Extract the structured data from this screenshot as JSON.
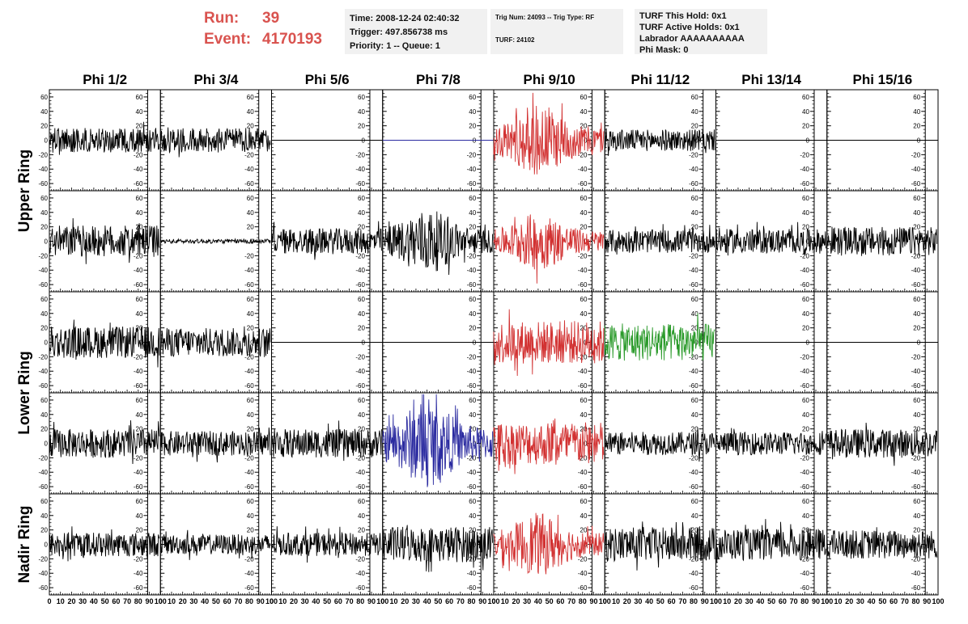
{
  "header": {
    "run_label": "Run:",
    "run_value": "39",
    "event_label": "Event:",
    "event_value": "4170193",
    "time": "Time: 2008-12-24 02:40:32",
    "trigger": "Trigger: 497.856738 ms",
    "priority": "Priority: 1 -- Queue: 1",
    "trig_num": "Trig Num: 24093 -- Trig Type: RF",
    "turf": "TURF: 24102",
    "turf_this_hold": "TURF This Hold: 0x1",
    "turf_active_holds": "TURF Active Holds: 0x1",
    "labrador": "Labrador AAAAAAAAAA",
    "phi_mask": "Phi Mask: 0"
  },
  "colors": {
    "run_text": "#d9534f",
    "box_bg": "#f1f1f1",
    "black": "#000000",
    "red": "#d23232",
    "blue": "#2b2ba0",
    "green": "#2a9a2a"
  },
  "chart_data": {
    "type": "line",
    "columns": [
      "Phi 1/2",
      "Phi 3/4",
      "Phi 5/6",
      "Phi 7/8",
      "Phi 9/10",
      "Phi 11/12",
      "Phi 13/14",
      "Phi 15/16"
    ],
    "ring_labels": [
      "Upper Ring",
      "Lower Ring",
      "Nadir Ring"
    ],
    "xlim": [
      0,
      100
    ],
    "ylim": [
      -70,
      70
    ],
    "x_ticks": [
      0,
      10,
      20,
      30,
      40,
      50,
      60,
      70,
      80,
      90,
      100
    ],
    "x_tick_labels": [
      "0",
      "10",
      "20",
      "30",
      "40",
      "50",
      "60",
      "70",
      "80",
      "90",
      "100"
    ],
    "y_ticks": [
      -60,
      -40,
      -20,
      0,
      20,
      40,
      60
    ],
    "y_tick_labels": [
      "-60",
      "-40",
      "-20",
      "0",
      "20",
      "40",
      "60"
    ],
    "grid": false,
    "rows": [
      [
        {
          "color": "black",
          "amp": 17,
          "active": true
        },
        {
          "color": "black",
          "amp": 17,
          "active": true
        },
        {
          "color": "black",
          "amp": 0,
          "active": false
        },
        {
          "color": "blue",
          "amp": 0,
          "active": false
        },
        {
          "color": "red",
          "amp": 40,
          "active": true
        },
        {
          "color": "black",
          "amp": 15,
          "active": true
        },
        {
          "color": "black",
          "amp": 0,
          "active": false
        },
        {
          "color": "black",
          "amp": 0,
          "active": false
        }
      ],
      [
        {
          "color": "black",
          "amp": 22,
          "active": true
        },
        {
          "color": "black",
          "amp": 3,
          "active": true
        },
        {
          "color": "black",
          "amp": 18,
          "active": true
        },
        {
          "color": "black",
          "amp": 36,
          "active": true
        },
        {
          "color": "red",
          "amp": 32,
          "active": true
        },
        {
          "color": "black",
          "amp": 16,
          "active": true
        },
        {
          "color": "black",
          "amp": 17,
          "active": true
        },
        {
          "color": "black",
          "amp": 20,
          "active": true
        }
      ],
      [
        {
          "color": "black",
          "amp": 22,
          "active": true
        },
        {
          "color": "black",
          "amp": 20,
          "active": true
        },
        {
          "color": "black",
          "amp": 0,
          "active": false
        },
        {
          "color": "black",
          "amp": 0,
          "active": false
        },
        {
          "color": "red",
          "amp": 30,
          "active": true
        },
        {
          "color": "green",
          "amp": 26,
          "active": true
        },
        {
          "color": "black",
          "amp": 0,
          "active": false
        },
        {
          "color": "black",
          "amp": 0,
          "active": false
        }
      ],
      [
        {
          "color": "black",
          "amp": 20,
          "active": true
        },
        {
          "color": "black",
          "amp": 17,
          "active": true
        },
        {
          "color": "black",
          "amp": 20,
          "active": true
        },
        {
          "color": "blue",
          "amp": 48,
          "active": true
        },
        {
          "color": "red",
          "amp": 30,
          "active": true
        },
        {
          "color": "black",
          "amp": 16,
          "active": true
        },
        {
          "color": "black",
          "amp": 16,
          "active": true
        },
        {
          "color": "black",
          "amp": 20,
          "active": true
        }
      ],
      [
        {
          "color": "black",
          "amp": 17,
          "active": true
        },
        {
          "color": "black",
          "amp": 14,
          "active": true
        },
        {
          "color": "black",
          "amp": 16,
          "active": true
        },
        {
          "color": "black",
          "amp": 25,
          "active": true
        },
        {
          "color": "red",
          "amp": 35,
          "active": true
        },
        {
          "color": "black",
          "amp": 24,
          "active": true
        },
        {
          "color": "black",
          "amp": 22,
          "active": true
        },
        {
          "color": "black",
          "amp": 20,
          "active": true
        }
      ]
    ]
  }
}
